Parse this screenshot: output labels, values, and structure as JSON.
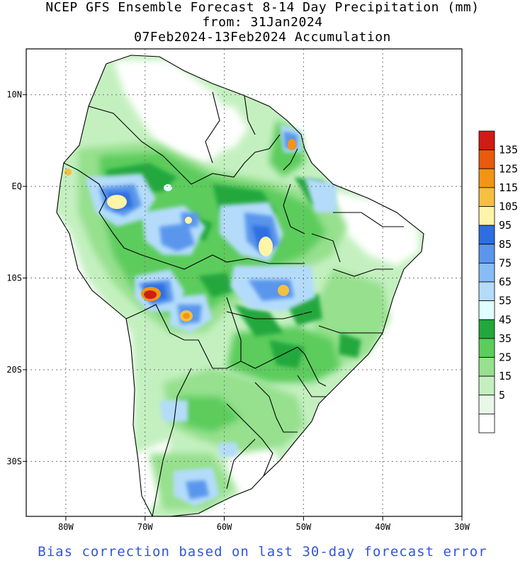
{
  "title": {
    "line1": "NCEP GFS Ensemble Forecast 8-14 Day Precipitation (mm)",
    "line2": "from: 31Jan2024",
    "line3": "07Feb2024-13Feb2024 Accumulation"
  },
  "footer": "Bias correction based on last 30-day forecast error",
  "map": {
    "lon_range": [
      -85,
      -30
    ],
    "lat_range": [
      -36,
      15
    ],
    "grid": "dotted",
    "x_ticks": [
      {
        "value": -80,
        "label": "80W"
      },
      {
        "value": -70,
        "label": "70W"
      },
      {
        "value": -60,
        "label": "60W"
      },
      {
        "value": -50,
        "label": "50W"
      },
      {
        "value": -40,
        "label": "40W"
      },
      {
        "value": -30,
        "label": "30W"
      }
    ],
    "y_ticks": [
      {
        "value": 10,
        "label": "10N"
      },
      {
        "value": 0,
        "label": "EQ"
      },
      {
        "value": -10,
        "label": "10S"
      },
      {
        "value": -20,
        "label": "20S"
      },
      {
        "value": -30,
        "label": "30S"
      }
    ],
    "palette": {
      "ocean": "#ffffff",
      "land_dry": "#ffffff",
      "p5": "#e8f8e8",
      "p15": "#c4f0c0",
      "p25": "#96e08e",
      "p35": "#5ccc5c",
      "p45": "#22a83c",
      "p55": "#e0ffff",
      "p65": "#b4dcfa",
      "p75": "#88bcf4",
      "p85": "#5a96ec",
      "p95": "#2e6ee0",
      "p105": "#fff4a8",
      "p115": "#f4c040",
      "p125": "#f49414",
      "p135": "#e85a0c",
      "p145": "#d01c14"
    },
    "maxima": [
      {
        "lon": -69,
        "lat": -12.5,
        "level": 135
      },
      {
        "lon": -52,
        "lat": 4.5,
        "level": 125
      },
      {
        "lon": -80.5,
        "lat": 0,
        "level": 125
      },
      {
        "lon": -74.5,
        "lat": -3.5,
        "level": 105
      },
      {
        "lon": -54.5,
        "lat": -8,
        "level": 105
      },
      {
        "lon": -64.5,
        "lat": -15,
        "level": 115
      },
      {
        "lon": -52.5,
        "lat": -12,
        "level": 115
      }
    ]
  },
  "colorbar": {
    "labels": [
      "135",
      "125",
      "115",
      "105",
      "95",
      "85",
      "75",
      "65",
      "55",
      "45",
      "35",
      "25",
      "15",
      "5"
    ],
    "colors": [
      "#d01c14",
      "#e85a0c",
      "#f49414",
      "#f4c040",
      "#fff4a8",
      "#2e6ee0",
      "#5a96ec",
      "#88bcf4",
      "#b4dcfa",
      "#e0ffff",
      "#22a83c",
      "#5ccc5c",
      "#96e08e",
      "#c4f0c0",
      "#e8f8e8",
      "#ffffff"
    ]
  }
}
